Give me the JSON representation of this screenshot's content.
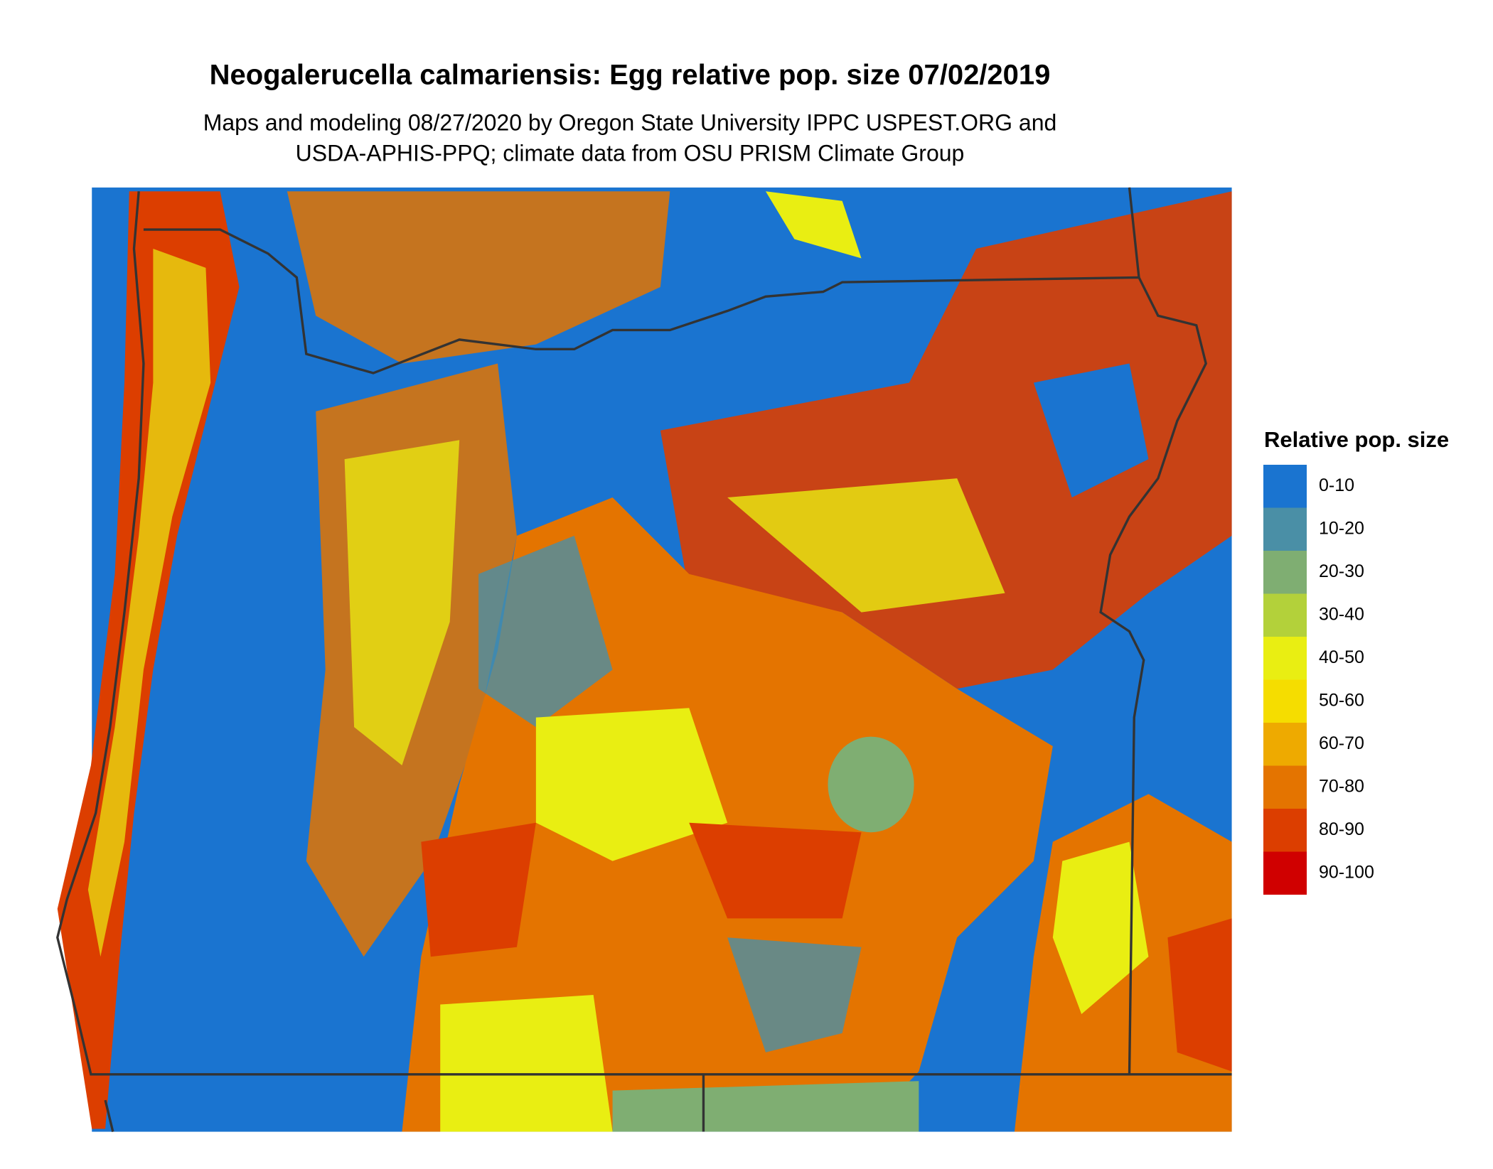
{
  "title": "Neogalerucella calmariensis: Egg relative pop. size 07/02/2019",
  "subtitle": [
    "Maps and modeling 08/27/2020 by Oregon State University IPPC USPEST.ORG and",
    "USDA-APHIS-PPQ; climate data from OSU PRISM Climate Group"
  ],
  "legend": {
    "title": "Relative pop. size",
    "items": [
      {
        "label": "0-10",
        "color": "#1a74d0"
      },
      {
        "label": "10-20",
        "color": "#4a8fa6"
      },
      {
        "label": "20-30",
        "color": "#7fae72"
      },
      {
        "label": "30-40",
        "color": "#b3d13a"
      },
      {
        "label": "40-50",
        "color": "#e9ee12"
      },
      {
        "label": "50-60",
        "color": "#f5dd00"
      },
      {
        "label": "60-70",
        "color": "#eeaa00"
      },
      {
        "label": "70-80",
        "color": "#e47400"
      },
      {
        "label": "80-90",
        "color": "#dc3e00"
      },
      {
        "label": "90-100",
        "color": "#d00000"
      }
    ]
  }
}
